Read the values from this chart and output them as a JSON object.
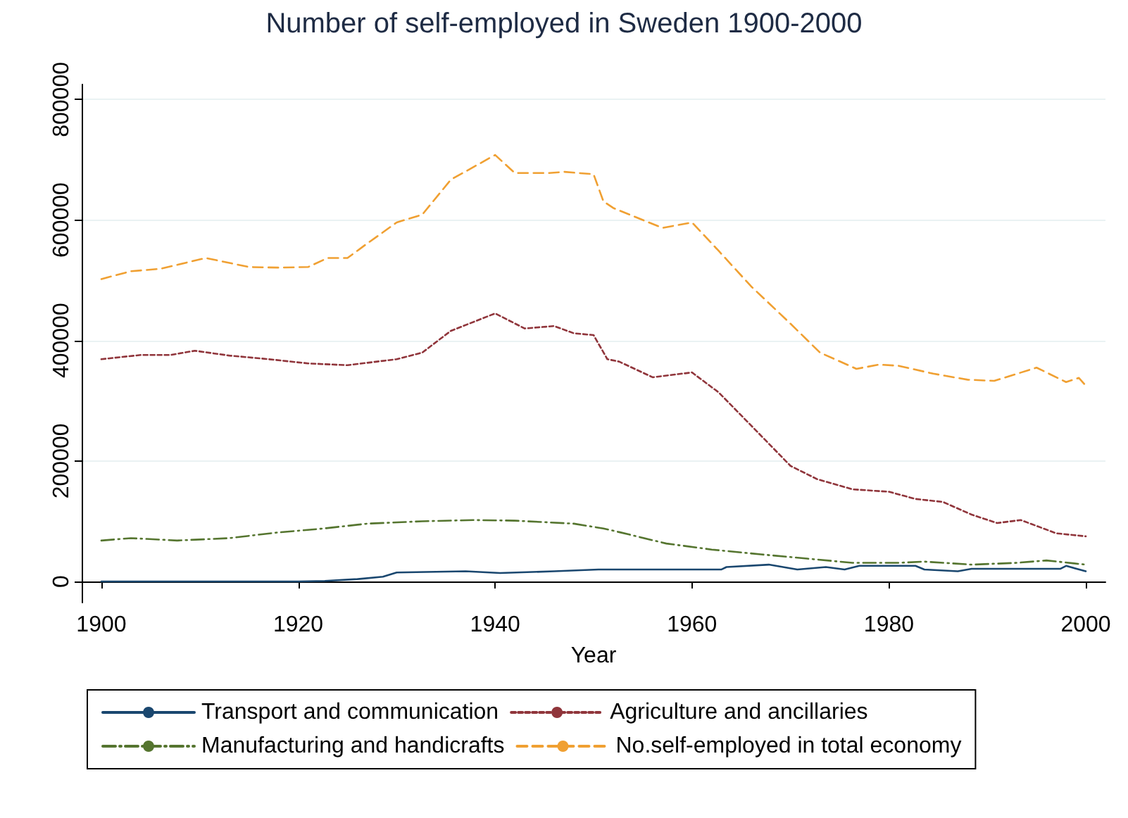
{
  "chart_data": {
    "type": "line",
    "title": "Number of self-employed in Sweden 1900-2000",
    "xlabel": "Year",
    "xlim": [
      1898,
      2002
    ],
    "xticks": [
      1900,
      1920,
      1940,
      1960,
      1980,
      2000
    ],
    "ylim": [
      -35000,
      825000
    ],
    "yticks": [
      0,
      200000,
      400000,
      600000,
      800000
    ],
    "grid": "y",
    "legend": "bottom",
    "marker": "none",
    "series": [
      {
        "name": "Transport and communication",
        "color": "#1a476f",
        "line_style": "solid",
        "x": [
          1900,
          1910,
          1920,
          1922.7,
          1926,
          1928.6,
          1930,
          1937,
          1940.5,
          1946,
          1950.5,
          1963,
          1963.5,
          1967.8,
          1970.7,
          1973.6,
          1975.5,
          1977,
          1982.7,
          1983.6,
          1987,
          1988.4,
          1997.4,
          1998,
          2000
        ],
        "values": [
          0,
          0,
          0,
          1000,
          4000,
          8000,
          15000,
          17000,
          14000,
          17000,
          20000,
          20000,
          24000,
          28000,
          20000,
          24000,
          20000,
          26000,
          26000,
          20000,
          17000,
          21000,
          21000,
          26000,
          17000
        ]
      },
      {
        "name": "Agriculture and ancillaries",
        "color": "#90353b",
        "line_style": "dotted",
        "x": [
          1900,
          1904,
          1907,
          1909.5,
          1913,
          1917,
          1921,
          1925,
          1930,
          1932.6,
          1935.5,
          1940,
          1943,
          1946,
          1948,
          1950,
          1951.4,
          1952.6,
          1956,
          1960,
          1962.7,
          1966,
          1970,
          1972.7,
          1976.3,
          1980,
          1982.7,
          1985.5,
          1988.4,
          1991,
          1993.4,
          1997,
          2000
        ],
        "values": [
          369000,
          376000,
          376000,
          383000,
          375000,
          369000,
          362000,
          359000,
          369000,
          380000,
          416000,
          445000,
          420000,
          424000,
          412000,
          409000,
          369000,
          365000,
          339000,
          347000,
          314000,
          259000,
          192000,
          170000,
          153000,
          149000,
          137000,
          132000,
          111000,
          97000,
          102000,
          80000,
          75000
        ]
      },
      {
        "name": "Manufacturing and handicrafts",
        "color": "#55752f",
        "line_style": "dashdot",
        "x": [
          1900,
          1903,
          1907.7,
          1913,
          1917.7,
          1922.6,
          1927,
          1932.6,
          1937.8,
          1942,
          1948,
          1951,
          1952.6,
          1957.4,
          1962,
          1967,
          1971.7,
          1976.3,
          1981,
          1983.6,
          1988.4,
          1993,
          1996,
          2000
        ],
        "values": [
          68000,
          72000,
          68000,
          72000,
          81000,
          88000,
          96000,
          100000,
          102000,
          101000,
          96000,
          88000,
          82000,
          63000,
          53000,
          45000,
          38000,
          31000,
          31000,
          33000,
          28000,
          31000,
          35000,
          28000
        ]
      },
      {
        "name": "No.self-employed in total economy",
        "color": "#f0a032",
        "line_style": "dashed",
        "x": [
          1900,
          1903,
          1906,
          1910.6,
          1915,
          1918,
          1921,
          1923,
          1925,
          1927,
          1930,
          1932.6,
          1935.5,
          1940,
          1942,
          1945.5,
          1947,
          1950,
          1951,
          1952,
          1955,
          1957,
          1960,
          1962.7,
          1966,
          1970,
          1973,
          1976.7,
          1979,
          1981,
          1984.5,
          1988,
          1990.7,
          1995,
          1998,
          1999.3,
          2000
        ],
        "values": [
          502000,
          515000,
          519000,
          537000,
          522000,
          521000,
          522000,
          537000,
          537000,
          561000,
          596000,
          609000,
          667000,
          708000,
          678000,
          678000,
          680000,
          676000,
          631000,
          620000,
          600000,
          587000,
          596000,
          549000,
          490000,
          428000,
          380000,
          353000,
          360000,
          358000,
          345000,
          335000,
          333000,
          355000,
          331000,
          338000,
          325000
        ]
      }
    ]
  }
}
